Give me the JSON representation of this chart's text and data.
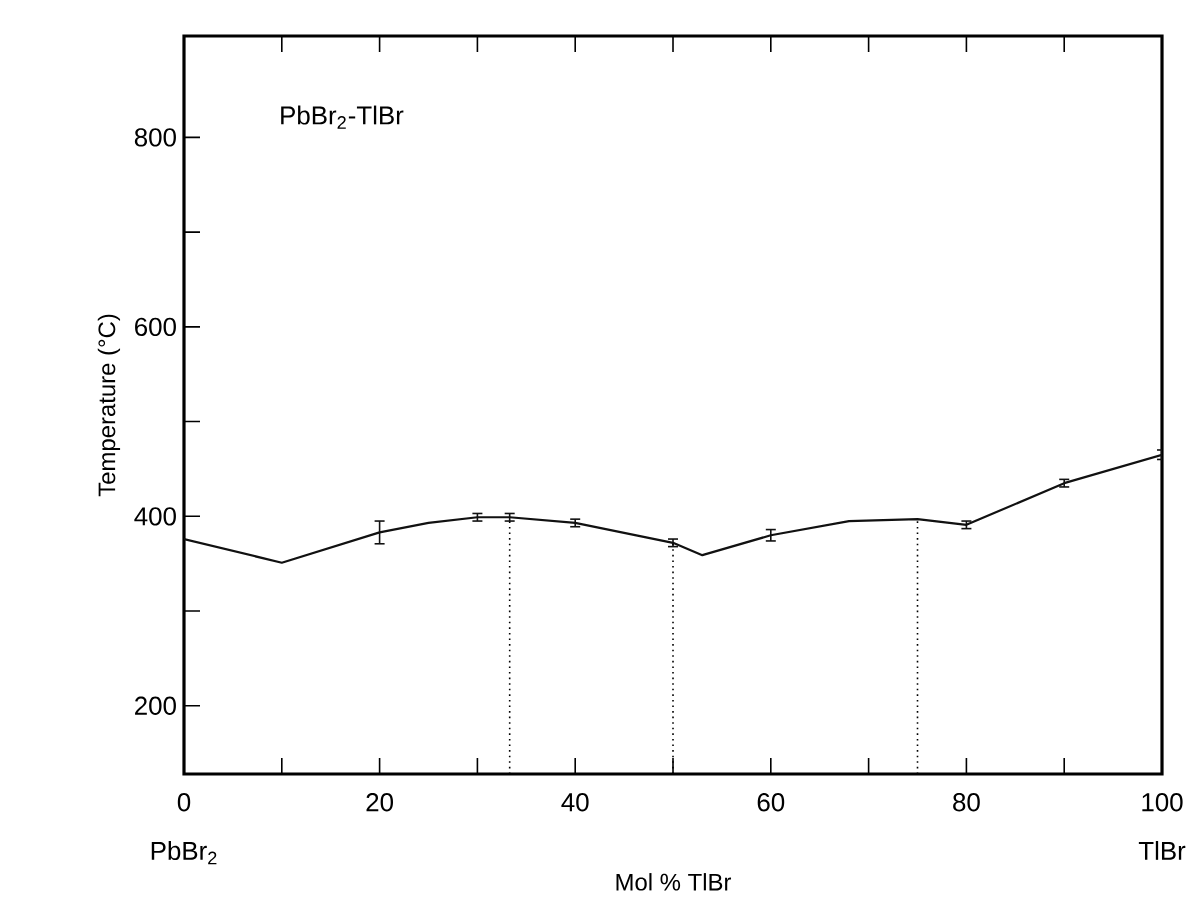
{
  "chart_data": {
    "type": "line",
    "title": "PbBr$_{2}$-TlBr",
    "xlabel": "Mol % TlBr",
    "ylabel": "Temperature (°C)",
    "annotations": [
      "PbBr$_{2}$",
      "TlBr"
    ],
    "series": [
      {
        "color": "#111111",
        "x": [
          0,
          10,
          20,
          25,
          30,
          33.3,
          40,
          50,
          53,
          60,
          68,
          75,
          80,
          90,
          100
        ],
        "values": [
          376,
          351,
          383,
          393,
          399,
          399,
          393,
          372,
          359,
          380,
          395,
          397,
          391,
          435,
          465
        ],
        "errors": [
          null,
          null,
          12,
          null,
          4,
          4,
          4,
          4,
          null,
          6,
          null,
          null,
          4,
          4,
          5
        ]
      }
    ],
    "line_style": "solid",
    "ref_lines": [
      {
        "axis": "x",
        "value": 33.3,
        "line_style": "dotted"
      },
      {
        "axis": "x",
        "value": 50,
        "line_style": "dotted"
      },
      {
        "axis": "x",
        "value": 75,
        "line_style": "dotted"
      }
    ],
    "xlim": [
      0,
      100
    ],
    "ylim": [
      128,
      907
    ],
    "xticks": [
      0,
      {
        "value": 10,
        "label": null
      },
      20,
      {
        "value": 30,
        "label": null
      },
      40,
      {
        "value": 50,
        "label": null
      },
      60,
      {
        "value": 70,
        "label": null
      },
      80,
      {
        "value": 90,
        "label": null
      },
      100
    ],
    "yticks": [
      200,
      {
        "value": 300,
        "label": null
      },
      400,
      {
        "value": 500,
        "label": null
      },
      600,
      {
        "value": 700,
        "label": null
      },
      800
    ],
    "grid": false
  }
}
